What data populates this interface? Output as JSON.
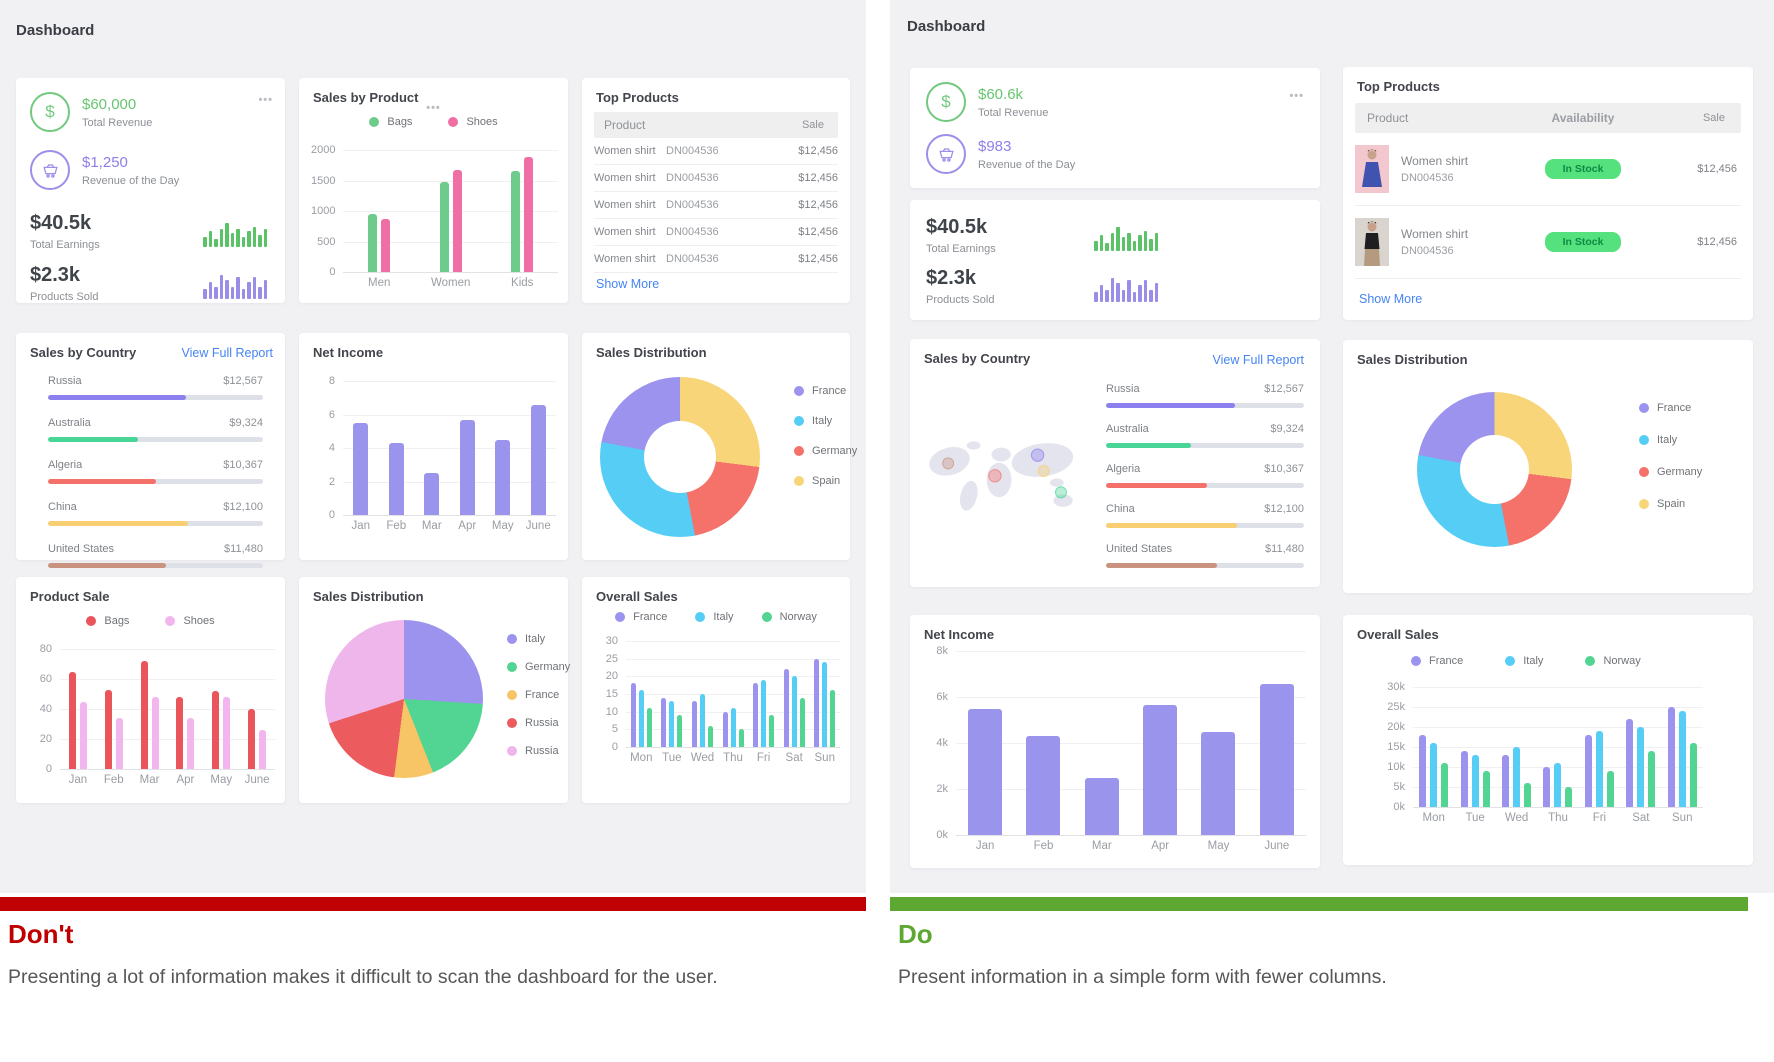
{
  "icons": {
    "more": "•••",
    "dollar": "$"
  },
  "dont": {
    "title": "Don't",
    "text": "Presenting a lot of information makes it difficult to scan the dashboard for the user.",
    "bar_color": "#c00000"
  },
  "do": {
    "title": "Do",
    "text": "Present information in a simple form with fewer columns.",
    "bar_color": "#5ea832"
  },
  "left": {
    "title": "Dashboard",
    "stats": {
      "total_revenue": {
        "value": "$60,000",
        "label": "Total Revenue"
      },
      "revenue_of_day": {
        "value": "$1,250",
        "label": "Revenue of the Day"
      },
      "total_earnings": {
        "value": "$40.5k",
        "label": "Total Earnings"
      },
      "products_sold": {
        "value": "$2.3k",
        "label": "Products Sold"
      },
      "earnings_spark": {
        "type": "spark",
        "color": "#5cc268",
        "values": [
          5,
          8,
          4,
          9,
          12,
          7,
          9,
          5,
          8,
          10,
          6,
          9
        ]
      },
      "sold_spark": {
        "type": "spark",
        "color": "#988ee8",
        "values": [
          4,
          7,
          5,
          10,
          8,
          5,
          9,
          4,
          7,
          9,
          5,
          8
        ]
      }
    },
    "sales_by_product": {
      "title": "Sales by Product",
      "chart": {
        "type": "bar",
        "ymax": 2000,
        "yticks": [
          "2000",
          "1500",
          "1000",
          "500",
          "0"
        ],
        "categories": [
          "Men",
          "Women",
          "Kids"
        ],
        "bw": 9,
        "gap": 4,
        "series": [
          {
            "name": "Bags",
            "color": "#6ecb8c",
            "values": [
              950,
              1480,
              1650
            ]
          },
          {
            "name": "Shoes",
            "color": "#ef6fa5",
            "values": [
              870,
              1670,
              1880
            ]
          }
        ]
      }
    },
    "top_products": {
      "title": "Top Products",
      "col_product": "Product",
      "col_sale": "Sale",
      "show_more": "Show More",
      "rows": [
        {
          "name": "Women shirt",
          "sku": "DN004536",
          "sale": "$12,456"
        },
        {
          "name": "Women shirt",
          "sku": "DN004536",
          "sale": "$12,456"
        },
        {
          "name": "Women shirt",
          "sku": "DN004536",
          "sale": "$12,456"
        },
        {
          "name": "Women shirt",
          "sku": "DN004536",
          "sale": "$12,456"
        },
        {
          "name": "Women shirt",
          "sku": "DN004536",
          "sale": "$12,456"
        }
      ]
    },
    "sales_by_country": {
      "title": "Sales by Country",
      "link": "View Full Report",
      "rows": [
        {
          "country": "Russia",
          "amount": "$12,567",
          "pct": 64,
          "color": "#8b80ee"
        },
        {
          "country": "Australia",
          "amount": "$9,324",
          "pct": 42,
          "color": "#48d597"
        },
        {
          "country": "Algeria",
          "amount": "$10,367",
          "pct": 50,
          "color": "#f4716a"
        },
        {
          "country": "China",
          "amount": "$12,100",
          "pct": 65,
          "color": "#f8cf73"
        },
        {
          "country": "United States",
          "amount": "$11,480",
          "pct": 55,
          "color": "#c9937f"
        }
      ]
    },
    "net_income": {
      "title": "Net Income",
      "chart": {
        "type": "bar",
        "ymax": 8,
        "yticks": [
          "8",
          "6",
          "4",
          "2",
          "0"
        ],
        "categories": [
          "Jan",
          "Feb",
          "Mar",
          "Apr",
          "May",
          "June"
        ],
        "bw": 15,
        "series": [
          {
            "name": "Net Income",
            "color": "#9a94ec",
            "values": [
              5.5,
              4.3,
              2.5,
              5.65,
              4.5,
              6.55
            ]
          }
        ]
      }
    },
    "sales_distribution_donut": {
      "title": "Sales Distribution",
      "chart": {
        "type": "donut",
        "reverse": true,
        "slices": [
          {
            "label": "France",
            "color": "#9b93ee",
            "pct": 22
          },
          {
            "label": "Italy",
            "color": "#55cdf4",
            "pct": 31
          },
          {
            "label": "Germany",
            "color": "#f4726a",
            "pct": 20
          },
          {
            "label": "Spain",
            "color": "#f8d579",
            "pct": 27
          }
        ]
      }
    },
    "product_sale": {
      "title": "Product Sale",
      "chart": {
        "type": "bar",
        "ymax": 80,
        "yticks": [
          "80",
          "60",
          "40",
          "20",
          "0"
        ],
        "categories": [
          "Jan",
          "Feb",
          "Mar",
          "Apr",
          "May",
          "June"
        ],
        "bw": 7,
        "gap": 4,
        "series": [
          {
            "name": "Bags",
            "color": "#e9555a",
            "values": [
              65,
              53,
              72,
              48,
              52,
              40
            ]
          },
          {
            "name": "Shoes",
            "color": "#f2b5ee",
            "values": [
              45,
              34,
              48,
              34,
              48,
              26
            ]
          }
        ]
      }
    },
    "sales_distribution_pie": {
      "title": "Sales Distribution",
      "chart": {
        "type": "pie",
        "slices": [
          {
            "label": "Italy",
            "color": "#9b93ee",
            "pct": 26
          },
          {
            "label": "Germany",
            "color": "#52d492",
            "pct": 18
          },
          {
            "label": "France",
            "color": "#f7c566",
            "pct": 8
          },
          {
            "label": "Russia",
            "color": "#ec5b5e",
            "pct": 18
          },
          {
            "label": "Russia",
            "color": "#efb6ec",
            "pct": 30
          }
        ]
      }
    },
    "overall_sales": {
      "title": "Overall Sales",
      "chart": {
        "type": "bar",
        "ymax": 30,
        "yticks": [
          "30",
          "25",
          "20",
          "15",
          "10",
          "5",
          "0"
        ],
        "categories": [
          "Mon",
          "Tue",
          "Wed",
          "Thu",
          "Fri",
          "Sat",
          "Sun"
        ],
        "bw": 5,
        "gap": 3,
        "series": [
          {
            "name": "France",
            "color": "#9b93ee",
            "values": [
              18,
              14,
              13,
              10,
              18,
              22,
              25
            ]
          },
          {
            "name": "Italy",
            "color": "#55cdf4",
            "values": [
              16,
              13,
              15,
              11,
              19,
              20,
              24
            ]
          },
          {
            "name": "Norway",
            "color": "#52d492",
            "values": [
              11,
              9,
              6,
              5,
              9,
              14,
              16
            ]
          }
        ]
      }
    }
  },
  "right": {
    "title": "Dashboard",
    "stats": {
      "total_revenue": {
        "value": "$60.6k",
        "label": "Total Revenue"
      },
      "revenue_of_day": {
        "value": "$983",
        "label": "Revenue of the Day"
      },
      "total_earnings": {
        "value": "$40.5k",
        "label": "Total Earnings"
      },
      "products_sold": {
        "value": "$2.3k",
        "label": "Products Sold"
      },
      "earnings_spark": {
        "type": "spark",
        "color": "#5cc268",
        "values": [
          5,
          8,
          4,
          9,
          12,
          7,
          9,
          5,
          8,
          10,
          6,
          9
        ]
      },
      "sold_spark": {
        "type": "spark",
        "color": "#988ee8",
        "values": [
          4,
          7,
          5,
          10,
          8,
          5,
          9,
          4,
          7,
          9,
          5,
          8
        ]
      }
    },
    "top_products": {
      "title": "Top Products",
      "col_product": "Product",
      "col_availability": "Availability",
      "col_sale": "Sale",
      "show_more": "Show More",
      "rows": [
        {
          "name": "Women shirt",
          "sku": "DN004536",
          "availability": "In Stock",
          "sale": "$12,456"
        },
        {
          "name": "Women shirt",
          "sku": "DN004536",
          "availability": "In Stock",
          "sale": "$12,456"
        }
      ]
    },
    "sales_by_country": {
      "title": "Sales by Country",
      "link": "View Full Report",
      "rows": [
        {
          "country": "Russia",
          "amount": "$12,567",
          "pct": 65,
          "color": "#8b80ee"
        },
        {
          "country": "Australia",
          "amount": "$9,324",
          "pct": 43,
          "color": "#48d597"
        },
        {
          "country": "Algeria",
          "amount": "$10,367",
          "pct": 51,
          "color": "#f4716a"
        },
        {
          "country": "China",
          "amount": "$12,100",
          "pct": 66,
          "color": "#f8cf73"
        },
        {
          "country": "United States",
          "amount": "$11,480",
          "pct": 56,
          "color": "#c9937f"
        }
      ]
    },
    "sales_distribution_donut": {
      "title": "Sales Distribution",
      "chart": {
        "type": "donut",
        "reverse": true,
        "slices": [
          {
            "label": "France",
            "color": "#9b93ee",
            "pct": 22
          },
          {
            "label": "Italy",
            "color": "#55cdf4",
            "pct": 31
          },
          {
            "label": "Germany",
            "color": "#f4726a",
            "pct": 20
          },
          {
            "label": "Spain",
            "color": "#f8d579",
            "pct": 27
          }
        ]
      }
    },
    "net_income": {
      "title": "Net Income",
      "chart": {
        "type": "bar",
        "ymax": 8,
        "yticks": [
          "8k",
          "6k",
          "4k",
          "2k",
          "0k"
        ],
        "categories": [
          "Jan",
          "Feb",
          "Mar",
          "Apr",
          "May",
          "June"
        ],
        "bw": 34,
        "series": [
          {
            "name": "Net Income",
            "color": "#9a94ec",
            "values": [
              5.5,
              4.3,
              2.5,
              5.65,
              4.5,
              6.55
            ]
          }
        ]
      }
    },
    "overall_sales": {
      "title": "Overall Sales",
      "chart": {
        "type": "bar",
        "ymax": 30,
        "yticks": [
          "30k",
          "25k",
          "20k",
          "15k",
          "10k",
          "5k",
          "0k"
        ],
        "categories": [
          "Mon",
          "Tue",
          "Wed",
          "Thu",
          "Fri",
          "Sat",
          "Sun"
        ],
        "bw": 7,
        "gap": 4,
        "series": [
          {
            "name": "France",
            "color": "#9b93ee",
            "values": [
              18,
              14,
              13,
              10,
              18,
              22,
              25
            ]
          },
          {
            "name": "Italy",
            "color": "#55cdf4",
            "values": [
              16,
              13,
              15,
              11,
              19,
              20,
              24
            ]
          },
          {
            "name": "Norway",
            "color": "#52d492",
            "values": [
              11,
              9,
              6,
              5,
              9,
              14,
              16
            ]
          }
        ]
      }
    }
  }
}
